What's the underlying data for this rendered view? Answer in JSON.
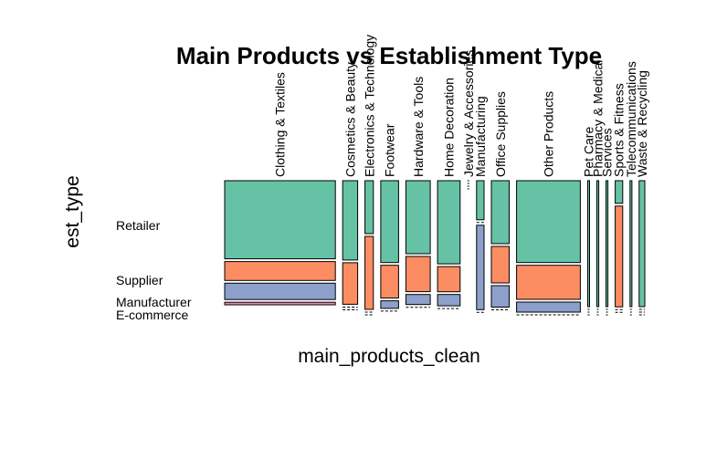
{
  "chart_data": {
    "type": "mosaic",
    "title": "Main Products vs Establishment Type",
    "xlabel": "main_products_clean",
    "ylabel": "est_type",
    "rows": [
      "Retailer",
      "Supplier",
      "Manufacturer",
      "E-commerce"
    ],
    "colors": {
      "Retailer": "#66c2a5",
      "Supplier": "#fc8d62",
      "Manufacturer": "#8da0cb",
      "E-commerce": "#e78ac3"
    },
    "columns": [
      {
        "label": "Clothing & Textiles",
        "proportions": [
          0.62,
          0.15,
          0.13,
          0.02
        ]
      },
      {
        "label": "Cosmetics & Beauty",
        "proportions": [
          0.63,
          0.33,
          0.0,
          0.0
        ]
      },
      {
        "label": "Electronics & Technology",
        "proportions": [
          0.42,
          0.58,
          0.0,
          0.0
        ]
      },
      {
        "label": "Footwear",
        "proportions": [
          0.65,
          0.26,
          0.06,
          0.0
        ]
      },
      {
        "label": "Hardware & Tools",
        "proportions": [
          0.58,
          0.28,
          0.08,
          0.0
        ]
      },
      {
        "label": "Home Decoration",
        "proportions": [
          0.66,
          0.2,
          0.09,
          0.0
        ]
      },
      {
        "label": "Jewelry & Accessories",
        "proportions": [
          0.0,
          0.0,
          0.0,
          0.0
        ]
      },
      {
        "label": "Manufacturing",
        "proportions": [
          0.31,
          0.0,
          0.67,
          0.0
        ]
      },
      {
        "label": "Office Supplies",
        "proportions": [
          0.5,
          0.29,
          0.17,
          0.0
        ]
      },
      {
        "label": "Other Products",
        "proportions": [
          0.65,
          0.27,
          0.08,
          0.0
        ]
      },
      {
        "label": "Pet Care",
        "proportions": [
          1.0,
          0.0,
          0.0,
          0.0
        ]
      },
      {
        "label": "Pharmacy & Medical",
        "proportions": [
          1.0,
          0.0,
          0.0,
          0.0
        ]
      },
      {
        "label": "Services",
        "proportions": [
          1.0,
          0.0,
          0.0,
          0.0
        ]
      },
      {
        "label": "Sports & Fitness",
        "proportions": [
          0.18,
          0.8,
          0.0,
          0.0
        ]
      },
      {
        "label": "Telecommunications",
        "proportions": [
          1.0,
          0.0,
          0.0,
          0.0
        ]
      },
      {
        "label": "Waste & Recycling",
        "proportions": [
          1.0,
          0.0,
          0.0,
          0.0
        ]
      }
    ],
    "column_widths": [
      118,
      16,
      9,
      19,
      26,
      24,
      2,
      8,
      19,
      68,
      2,
      2,
      2,
      8,
      2,
      6
    ],
    "grid": false,
    "legend": "none"
  }
}
